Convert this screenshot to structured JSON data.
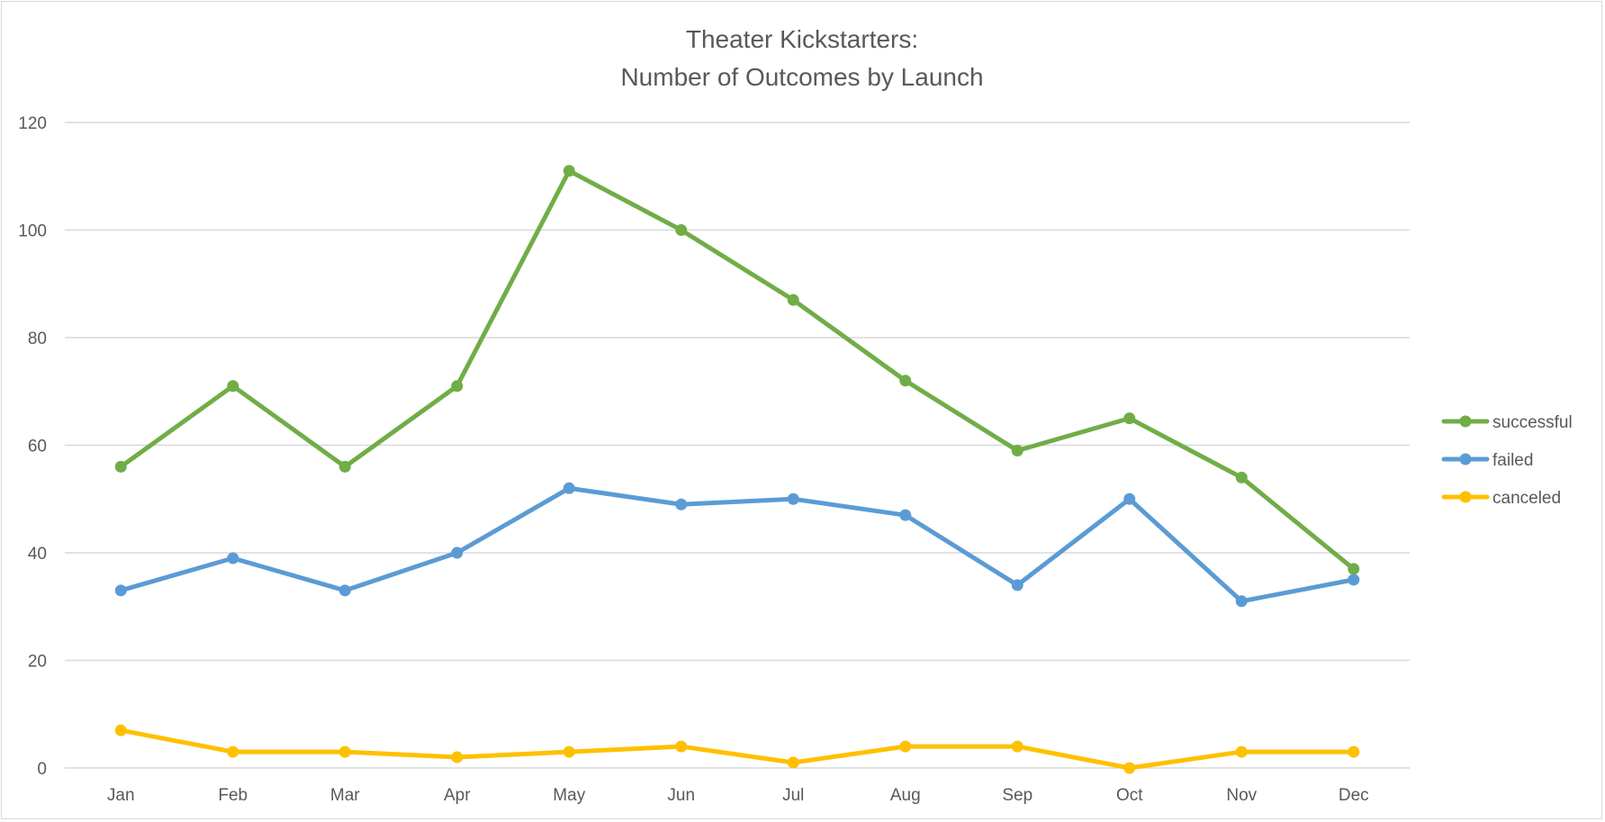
{
  "chart_data": {
    "type": "line",
    "title_line1": "Theater Kickstarters:",
    "title_line2": "Number of Outcomes by Launch",
    "xlabel": "",
    "ylabel": "",
    "categories": [
      "Jan",
      "Feb",
      "Mar",
      "Apr",
      "May",
      "Jun",
      "Jul",
      "Aug",
      "Sep",
      "Oct",
      "Nov",
      "Dec"
    ],
    "ylim": [
      0,
      120
    ],
    "y_ticks": [
      0,
      20,
      40,
      60,
      80,
      100,
      120
    ],
    "grid": true,
    "legend_position": "right",
    "series": [
      {
        "name": "successful",
        "color": "#70ad47",
        "values": [
          56,
          71,
          56,
          71,
          111,
          100,
          87,
          72,
          59,
          65,
          54,
          37
        ]
      },
      {
        "name": "failed",
        "color": "#5b9bd5",
        "values": [
          33,
          39,
          33,
          40,
          52,
          49,
          50,
          47,
          34,
          50,
          31,
          35
        ]
      },
      {
        "name": "canceled",
        "color": "#ffc000",
        "values": [
          7,
          3,
          3,
          2,
          3,
          4,
          1,
          4,
          4,
          0,
          3,
          3
        ]
      }
    ]
  }
}
